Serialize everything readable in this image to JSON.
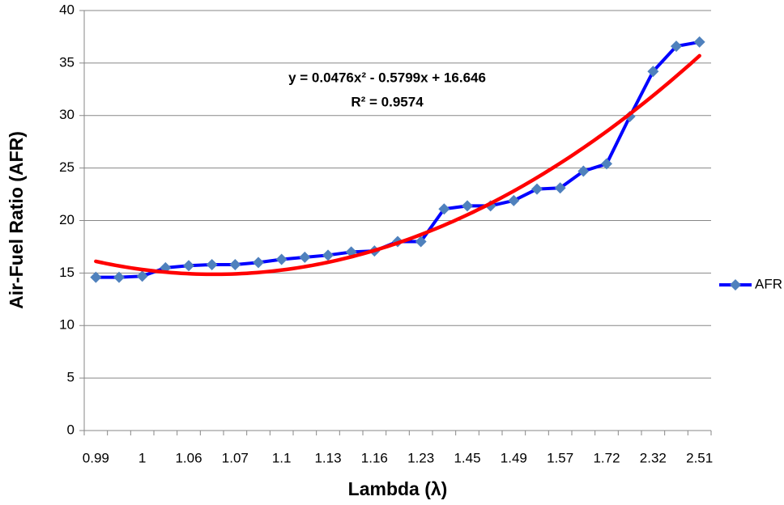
{
  "chart_data": {
    "type": "line",
    "x_label": "Lambda (λ)",
    "y_label": "Air-Fuel Ratio (AFR)",
    "categories": [
      "0.99",
      null,
      "1",
      null,
      "1.06",
      null,
      "1.07",
      null,
      "1.1",
      null,
      "1.13",
      null,
      "1.16",
      null,
      "1.23",
      null,
      "1.45",
      null,
      "1.49",
      null,
      "1.57",
      null,
      "1.72",
      null,
      "2.32",
      null,
      "2.51"
    ],
    "series": [
      {
        "name": "AFR",
        "color": "#0000ff",
        "marker_color": "#4f81bd",
        "values": [
          14.6,
          14.6,
          14.7,
          15.5,
          15.7,
          15.8,
          15.8,
          16.0,
          16.3,
          16.5,
          16.7,
          17.0,
          17.1,
          18.0,
          18.0,
          21.1,
          21.4,
          21.4,
          21.9,
          23.0,
          23.1,
          24.7,
          25.4,
          29.9,
          34.2,
          36.6,
          37.0
        ]
      }
    ],
    "trendline": {
      "type": "polynomial",
      "color": "#ff0000",
      "coefficients": [
        0.0476,
        -0.5799,
        16.646
      ],
      "equation": "y = 0.0476x² - 0.5799x + 16.646",
      "r_squared": "R² = 0.9574"
    },
    "ylim": [
      0,
      40
    ],
    "yticks": [
      0,
      5,
      10,
      15,
      20,
      25,
      30,
      35,
      40
    ],
    "grid": true,
    "legend": "right"
  }
}
